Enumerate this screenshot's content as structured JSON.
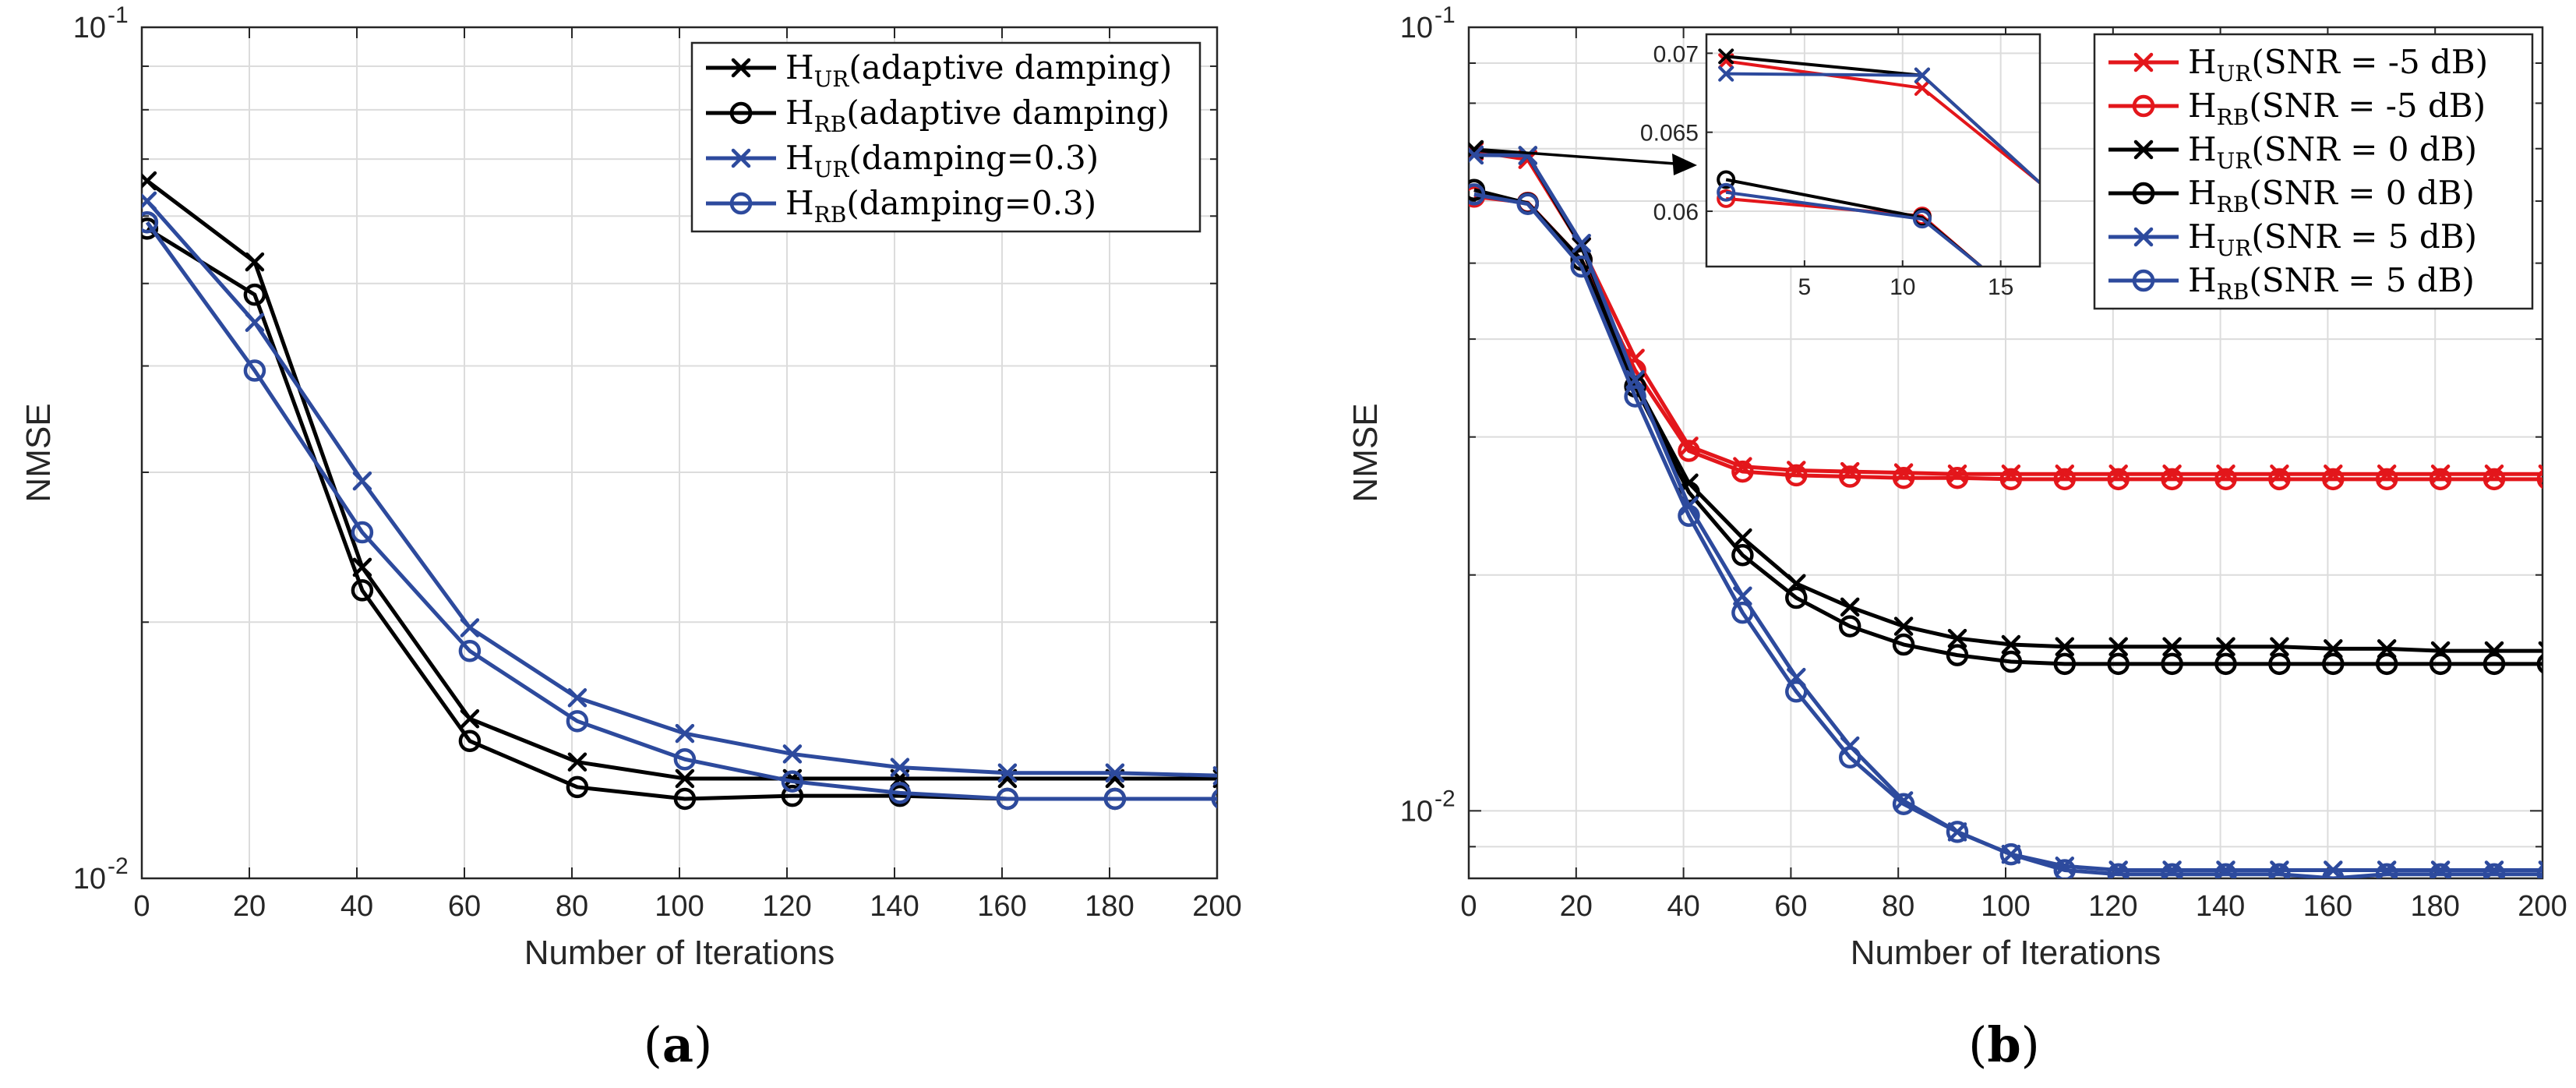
{
  "chart_data": [
    {
      "type": "line",
      "panel": "a",
      "caption_open": "(",
      "caption_letter": "a",
      "caption_close": ")",
      "xlabel": "Number of Iterations",
      "ylabel": "NMSE",
      "yscale": "log",
      "xlim": [
        0,
        200
      ],
      "ylim": [
        0.01,
        0.1
      ],
      "xticks": [
        "0",
        "20",
        "40",
        "60",
        "80",
        "100",
        "120",
        "140",
        "160",
        "180",
        "200"
      ],
      "ytick_labels": [
        {
          "base": "10",
          "exp": "-1",
          "value": 0.1
        },
        {
          "base": "10",
          "exp": "-2",
          "value": 0.01
        }
      ],
      "grid": true,
      "legend_position": "top-right",
      "series": [
        {
          "id": "a0",
          "sym": "H",
          "sub": "UR",
          "rest": "(adaptive damping)",
          "color": "#000000",
          "marker": "x",
          "x": [
            1,
            21,
            41,
            61,
            81,
            101,
            121,
            141,
            161,
            181,
            201
          ],
          "y": [
            0.066,
            0.053,
            0.0232,
            0.0154,
            0.0137,
            0.0131,
            0.0131,
            0.0131,
            0.0131,
            0.0131,
            0.0131
          ]
        },
        {
          "id": "a1",
          "sym": "H",
          "sub": "RB",
          "rest": "(adaptive damping)",
          "color": "#000000",
          "marker": "o",
          "x": [
            1,
            21,
            41,
            61,
            81,
            101,
            121,
            141,
            161,
            181,
            201
          ],
          "y": [
            0.058,
            0.0485,
            0.0218,
            0.0145,
            0.0128,
            0.0124,
            0.0125,
            0.0125,
            0.0124,
            0.0124,
            0.0124
          ]
        },
        {
          "id": "a2",
          "sym": "H",
          "sub": "UR",
          "rest": "(damping=0.3)",
          "color": "#2d4a9d",
          "marker": "x",
          "x": [
            1,
            21,
            41,
            61,
            81,
            101,
            121,
            141,
            161,
            181,
            201
          ],
          "y": [
            0.0625,
            0.045,
            0.0293,
            0.0197,
            0.0163,
            0.0148,
            0.014,
            0.0135,
            0.0133,
            0.0133,
            0.0132
          ]
        },
        {
          "id": "a3",
          "sym": "H",
          "sub": "RB",
          "rest": "(damping=0.3)",
          "color": "#2d4a9d",
          "marker": "o",
          "x": [
            1,
            21,
            41,
            61,
            81,
            101,
            121,
            141,
            161,
            181,
            201
          ],
          "y": [
            0.059,
            0.0395,
            0.0255,
            0.0185,
            0.0153,
            0.0138,
            0.013,
            0.0126,
            0.0124,
            0.0124,
            0.0124
          ]
        }
      ]
    },
    {
      "type": "line",
      "panel": "b",
      "caption_open": "(",
      "caption_letter": "b",
      "caption_close": ")",
      "xlabel": "Number of Iterations",
      "ylabel": "NMSE",
      "yscale": "log",
      "xlim": [
        0,
        200
      ],
      "ylim": [
        0.0082,
        0.1
      ],
      "xticks": [
        "0",
        "20",
        "40",
        "60",
        "80",
        "100",
        "120",
        "140",
        "160",
        "180",
        "200"
      ],
      "ytick_labels": [
        {
          "base": "10",
          "exp": "-1",
          "value": 0.1
        },
        {
          "base": "10",
          "exp": "-2",
          "value": 0.01
        }
      ],
      "grid": true,
      "legend_position": "top-right",
      "series": [
        {
          "id": "b0",
          "sym": "H",
          "sub": "UR",
          "rest": "(SNR = -5 dB)",
          "color": "#e3161b",
          "marker": "x",
          "x": [
            1,
            11,
            21,
            31,
            41,
            51,
            61,
            71,
            81,
            91,
            101,
            111,
            121,
            131,
            141,
            151,
            161,
            171,
            181,
            191,
            201
          ],
          "y": [
            0.0695,
            0.0678,
            0.0525,
            0.0378,
            0.0292,
            0.0275,
            0.0272,
            0.0271,
            0.027,
            0.0269,
            0.0269,
            0.0269,
            0.0269,
            0.0269,
            0.0269,
            0.0269,
            0.0269,
            0.0269,
            0.0269,
            0.0269,
            0.0269
          ]
        },
        {
          "id": "b1",
          "sym": "H",
          "sub": "RB",
          "rest": "(SNR = -5 dB)",
          "color": "#e3161b",
          "marker": "o",
          "x": [
            1,
            11,
            21,
            31,
            41,
            51,
            61,
            71,
            81,
            91,
            101,
            111,
            121,
            131,
            141,
            151,
            161,
            171,
            181,
            191,
            201
          ],
          "y": [
            0.0608,
            0.0597,
            0.0505,
            0.0365,
            0.0288,
            0.0271,
            0.0268,
            0.0267,
            0.0266,
            0.0266,
            0.0265,
            0.0265,
            0.0265,
            0.0265,
            0.0265,
            0.0265,
            0.0265,
            0.0265,
            0.0265,
            0.0265,
            0.0265
          ]
        },
        {
          "id": "b2",
          "sym": "H",
          "sub": "UR",
          "rest": "(SNR = 0 dB)",
          "color": "#000000",
          "marker": "x",
          "x": [
            1,
            11,
            21,
            31,
            41,
            51,
            61,
            71,
            81,
            91,
            101,
            111,
            121,
            131,
            141,
            151,
            161,
            171,
            181,
            191,
            201
          ],
          "y": [
            0.0698,
            0.0686,
            0.0525,
            0.0352,
            0.0262,
            0.0223,
            0.0195,
            0.0182,
            0.0172,
            0.0166,
            0.0163,
            0.0162,
            0.0162,
            0.0162,
            0.0162,
            0.0162,
            0.0161,
            0.0161,
            0.016,
            0.016,
            0.016
          ]
        },
        {
          "id": "b3",
          "sym": "H",
          "sub": "RB",
          "rest": "(SNR = 0 dB)",
          "color": "#000000",
          "marker": "o",
          "x": [
            1,
            11,
            21,
            31,
            41,
            51,
            61,
            71,
            81,
            91,
            101,
            111,
            121,
            131,
            141,
            151,
            161,
            171,
            181,
            191,
            201
          ],
          "y": [
            0.062,
            0.0596,
            0.0505,
            0.0348,
            0.0255,
            0.0212,
            0.0187,
            0.0172,
            0.0163,
            0.0158,
            0.0155,
            0.0154,
            0.0154,
            0.0154,
            0.0154,
            0.0154,
            0.0154,
            0.0154,
            0.0154,
            0.0154,
            0.0154
          ]
        },
        {
          "id": "b4",
          "sym": "H",
          "sub": "UR",
          "rest": "(SNR = 5 dB)",
          "color": "#2d4a9d",
          "marker": "x",
          "x": [
            1,
            11,
            21,
            31,
            41,
            51,
            61,
            71,
            81,
            91,
            101,
            111,
            121,
            131,
            141,
            151,
            161,
            171,
            181,
            191,
            201
          ],
          "y": [
            0.0687,
            0.0686,
            0.053,
            0.0355,
            0.0245,
            0.0188,
            0.0148,
            0.0121,
            0.0103,
            0.0094,
            0.0088,
            0.0085,
            0.0084,
            0.0084,
            0.0084,
            0.0084,
            0.0084,
            0.0084,
            0.0084,
            0.0084,
            0.0084
          ]
        },
        {
          "id": "b5",
          "sym": "H",
          "sub": "RB",
          "rest": "(SNR = 5 dB)",
          "color": "#2d4a9d",
          "marker": "o",
          "x": [
            1,
            11,
            21,
            31,
            41,
            51,
            61,
            71,
            81,
            91,
            101,
            111,
            121,
            131,
            141,
            151,
            161,
            171,
            181,
            191,
            201
          ],
          "y": [
            0.0612,
            0.0595,
            0.0495,
            0.0338,
            0.0238,
            0.0179,
            0.0142,
            0.0117,
            0.0102,
            0.0094,
            0.0088,
            0.0084,
            0.0083,
            0.0083,
            0.0083,
            0.0083,
            0.0082,
            0.0083,
            0.0083,
            0.0083,
            0.0083
          ]
        }
      ],
      "inset": {
        "xlim": [
          0,
          17
        ],
        "ylim": [
          0.0565,
          0.0712
        ],
        "xticks": [
          "5",
          "10",
          "15"
        ],
        "yticks": [
          "0.07",
          "0.065",
          "0.06"
        ],
        "series_points": {
          "b0": {
            "x": [
              1,
              11,
              17
            ],
            "y": [
              0.0695,
              0.0678,
              0.0618
            ]
          },
          "b1": {
            "x": [
              1,
              11,
              14
            ],
            "y": [
              0.0608,
              0.0597,
              0.0565
            ]
          },
          "b2": {
            "x": [
              1,
              11,
              17
            ],
            "y": [
              0.0698,
              0.0686,
              0.0618
            ]
          },
          "b3": {
            "x": [
              1,
              11,
              14
            ],
            "y": [
              0.062,
              0.0596,
              0.0565
            ]
          },
          "b4": {
            "x": [
              1,
              11,
              17
            ],
            "y": [
              0.0687,
              0.0686,
              0.0618
            ]
          },
          "b5": {
            "x": [
              1,
              11,
              14
            ],
            "y": [
              0.0612,
              0.0595,
              0.0565
            ]
          }
        }
      }
    }
  ]
}
